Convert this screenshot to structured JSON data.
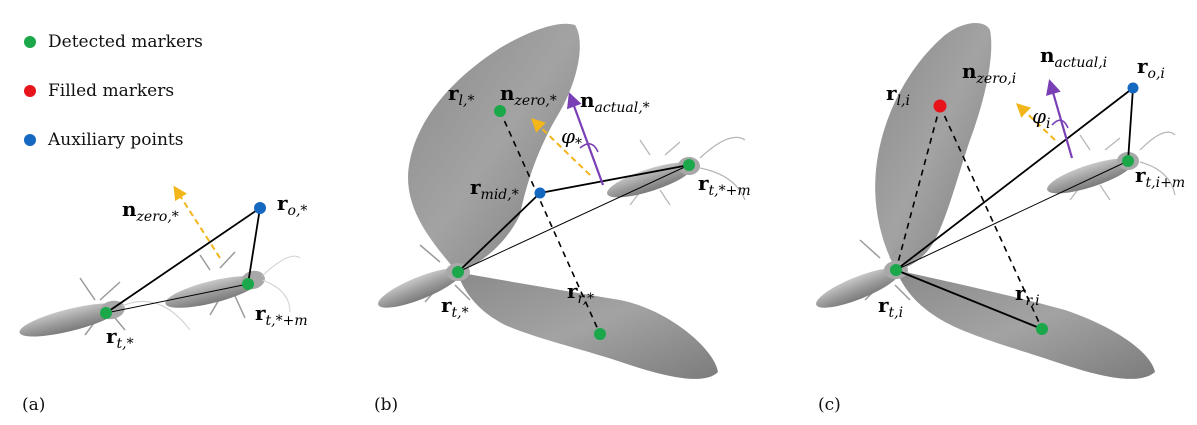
{
  "legend": [
    {
      "label": "Detected markers",
      "color": "#1aa84a"
    },
    {
      "label": "Filled markers",
      "color": "#e8141c"
    },
    {
      "label": "Auxiliary points",
      "color": "#1468c0"
    }
  ],
  "colors": {
    "detected": "#1aa84a",
    "filled": "#e8141c",
    "auxiliary": "#1468c0",
    "zero_vector": "#f2b51a",
    "actual_vector": "#7a3fb5",
    "wing": "#9a9a9a",
    "body": "#a8a8a8"
  },
  "panels": {
    "a": {
      "caption": "(a)",
      "labels": {
        "n_zero": {
          "base": "n",
          "sub": "zero,*"
        },
        "r_o": {
          "base": "r",
          "sub": "o,*"
        },
        "r_t": {
          "base": "r",
          "sub": "t,*"
        },
        "r_tm": {
          "base": "r",
          "sub": "t,*+m"
        }
      }
    },
    "b": {
      "caption": "(b)",
      "labels": {
        "r_l": {
          "base": "r",
          "sub": "l,*"
        },
        "n_zero": {
          "base": "n",
          "sub": "zero,*"
        },
        "n_actual": {
          "base": "n",
          "sub": "actual,*"
        },
        "phi": {
          "base": "φ",
          "sub": "*"
        },
        "r_mid": {
          "base": "r",
          "sub": "mid,*"
        },
        "r_tm": {
          "base": "r",
          "sub": "t,*+m"
        },
        "r_t": {
          "base": "r",
          "sub": "t,*"
        },
        "r_r": {
          "base": "r",
          "sub": "r,*"
        }
      }
    },
    "c": {
      "caption": "(c)",
      "labels": {
        "r_l": {
          "base": "r",
          "sub": "l,i"
        },
        "n_zero": {
          "base": "n",
          "sub": "zero,i"
        },
        "n_actual": {
          "base": "n",
          "sub": "actual,i"
        },
        "r_o": {
          "base": "r",
          "sub": "o,i"
        },
        "phi": {
          "base": "φ",
          "sub": "i"
        },
        "r_tm": {
          "base": "r",
          "sub": "t,i+m"
        },
        "r_t": {
          "base": "r",
          "sub": "t,i"
        },
        "r_r": {
          "base": "r",
          "sub": "r,i"
        }
      }
    }
  }
}
